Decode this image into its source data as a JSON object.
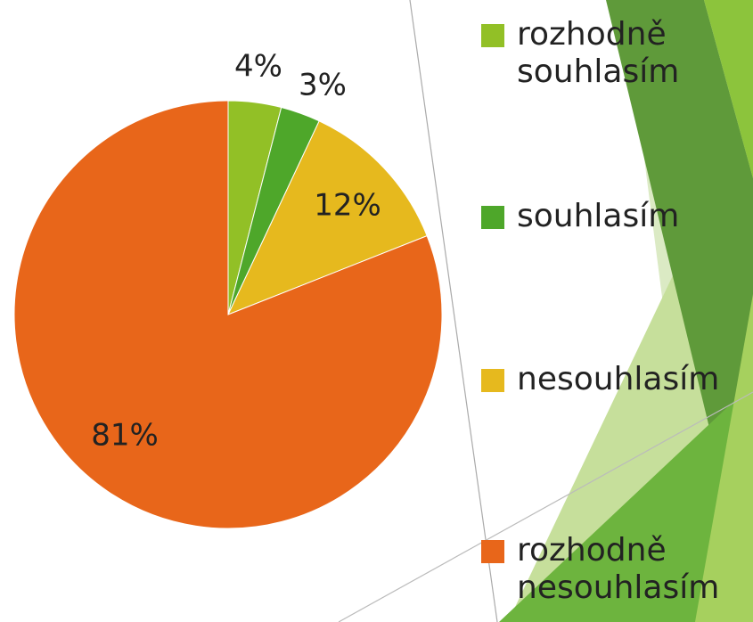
{
  "chart_data": {
    "type": "pie",
    "categories": [
      "rozhodně souhlasím",
      "souhlasím",
      "nesouhlasím",
      "rozhodně nesouhlasím"
    ],
    "values": [
      4,
      3,
      12,
      81
    ],
    "value_labels": [
      "4%",
      "3%",
      "12%",
      "81%"
    ],
    "colors": [
      "#92c026",
      "#4ea72a",
      "#e6b91e",
      "#e8661a"
    ],
    "legend": "right"
  }
}
